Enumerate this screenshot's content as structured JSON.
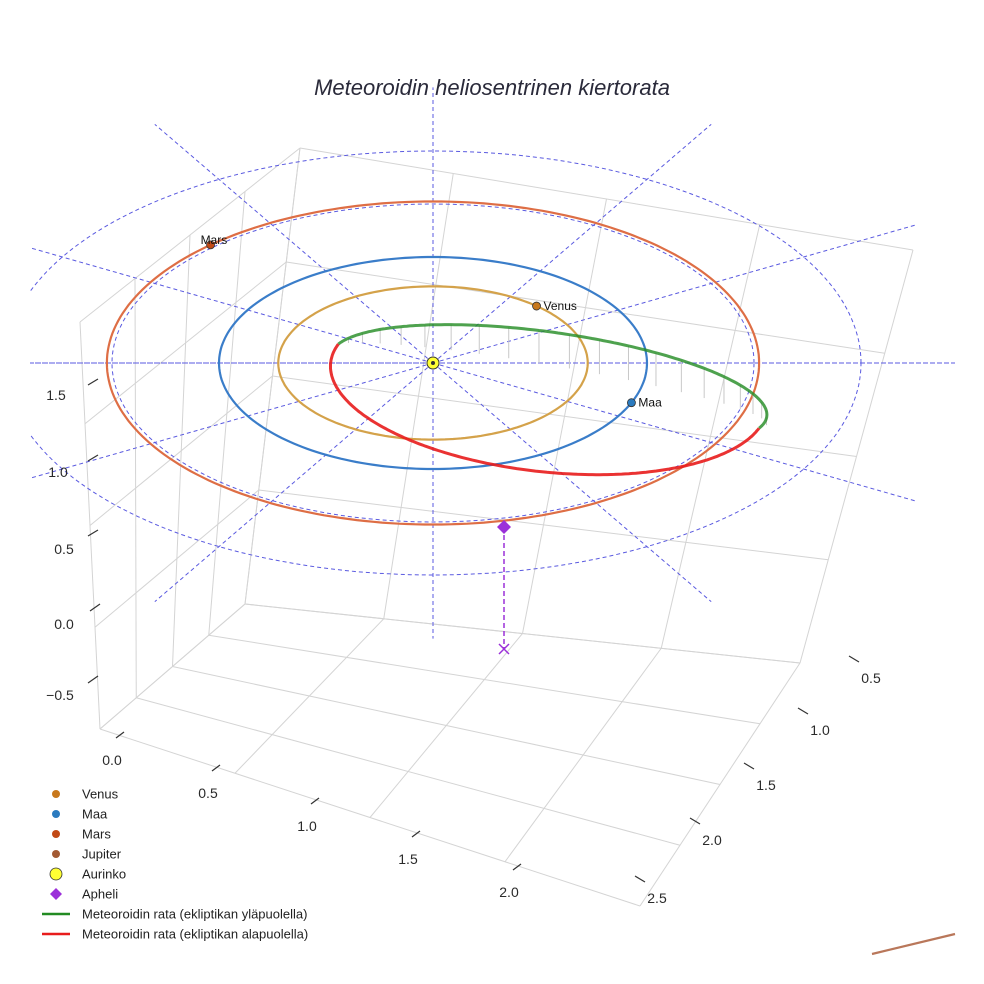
{
  "chart_data": {
    "type": "scatter3d",
    "title": "Meteoroidin heliosentrinen kiertorata",
    "axes": {
      "x": {
        "ticks": [
          0.0,
          0.5,
          1.0,
          1.5,
          2.0
        ],
        "tick_labels": [
          "0.0",
          "0.5",
          "1.0",
          "1.5",
          "2.0"
        ]
      },
      "y": {
        "ticks": [
          0.5,
          1.0,
          1.5,
          2.0,
          2.5
        ],
        "tick_labels": [
          "0.5",
          "1.0",
          "1.5",
          "2.0",
          "2.5"
        ]
      },
      "z": {
        "ticks": [
          -0.5,
          0.0,
          0.5,
          1.0,
          1.5
        ],
        "tick_labels": [
          "−0.5",
          "0.0",
          "0.5",
          "1.0",
          "1.5"
        ]
      }
    },
    "grid": true,
    "legend_position": "bottom-left",
    "planet_orbits": [
      {
        "name": "Venus",
        "radius_au": 0.723,
        "color": "#d4a24a"
      },
      {
        "name": "Maa",
        "radius_au": 1.0,
        "color": "#3a7dc9"
      },
      {
        "name": "Mars",
        "radius_au": 1.524,
        "color": "#de6e45"
      }
    ],
    "bodies": [
      {
        "name": "Venus",
        "label": "Venus",
        "color": "#c8781c",
        "angle_deg": 48
      },
      {
        "name": "Maa",
        "label": "Maa",
        "color": "#2b7bbf",
        "angle_deg": -22
      },
      {
        "name": "Mars",
        "label": "Mars",
        "color": "#c24a16",
        "angle_deg": 133
      },
      {
        "name": "Jupiter",
        "label": "",
        "color": "#b9775a",
        "angle_deg": 0
      }
    ],
    "sun": {
      "name": "Aurinko",
      "color": "#ffff33"
    },
    "aphelion": {
      "name": "Apheli",
      "color": "#9b30d9",
      "distance_au": 1.64,
      "z_au": 0.72
    },
    "meteoroid_orbit": {
      "a_au": 1.06,
      "e": 0.55,
      "inclination_deg": 35,
      "series": [
        {
          "name": "Meteoroidin rata (ekliptikan yläpuolella)",
          "color": "#228b22"
        },
        {
          "name": "Meteoroidin rata (ekliptikan alapuolella)",
          "color": "#e81c1c"
        }
      ]
    },
    "reference_rings_au": [
      1.0,
      1.5,
      2.0
    ]
  },
  "legend": {
    "items": [
      {
        "label": "Venus",
        "color": "#c8781c",
        "symbol": "circle"
      },
      {
        "label": "Maa",
        "color": "#2b7bbf",
        "symbol": "circle"
      },
      {
        "label": "Mars",
        "color": "#c24a16",
        "symbol": "circle"
      },
      {
        "label": "Jupiter",
        "color": "#a35a33",
        "symbol": "circle"
      },
      {
        "label": "Aurinko",
        "color": "#ffff33",
        "symbol": "circle-lg"
      },
      {
        "label": "Apheli",
        "color": "#9b30d9",
        "symbol": "diamond"
      },
      {
        "label": "Meteoroidin rata (ekliptikan yläpuolella)",
        "color": "#228b22",
        "symbol": "line"
      },
      {
        "label": "Meteoroidin rata (ekliptikan alapuolella)",
        "color": "#e81c1c",
        "symbol": "line"
      }
    ]
  }
}
